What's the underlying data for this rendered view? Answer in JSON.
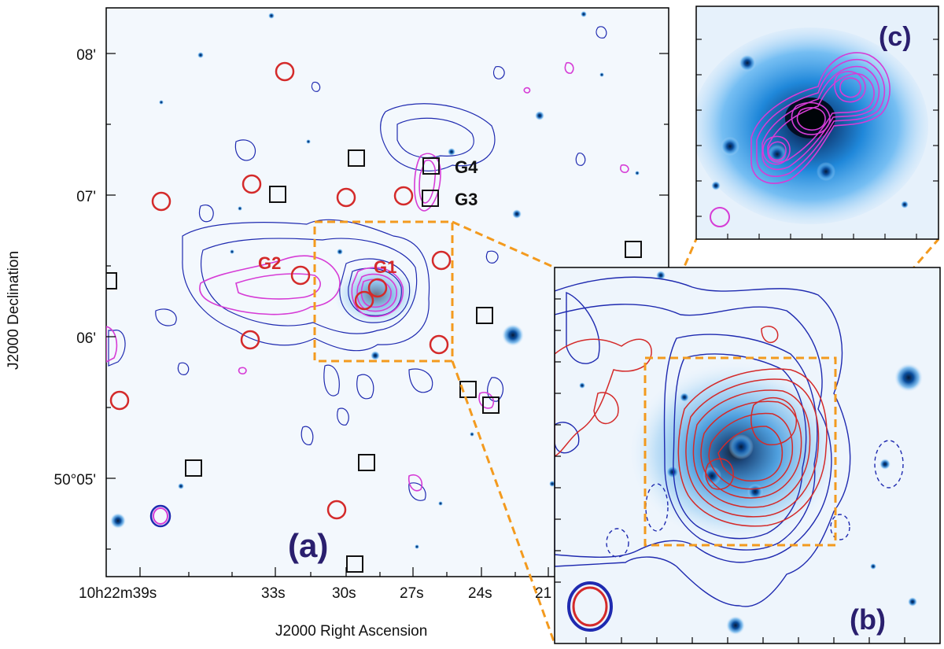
{
  "panels": {
    "a": {
      "label": "(a)"
    },
    "b": {
      "label": "(b)"
    },
    "c": {
      "label": "(c)"
    }
  },
  "axes": {
    "ylabel": "J2000 Declination",
    "xlabel": "J2000 Right Ascension",
    "y_ticks": [
      "08'",
      "07'",
      "06'",
      "50°05'"
    ],
    "x_ticks": [
      "10h22m39s",
      "33s",
      "30s",
      "27s",
      "24s",
      "21"
    ]
  },
  "sources": {
    "g1": "G1",
    "g2": "G2",
    "g3": "G3",
    "g4": "G4"
  },
  "colors": {
    "background": "#f3f8fd",
    "star": "#0a4f9a",
    "red_circle": "#d42a2a",
    "blue_contour": "#1f2ab0",
    "magenta_contour": "#d63cd6",
    "dashed_box": "#f39a1e",
    "label": "#2a1f6e"
  }
}
